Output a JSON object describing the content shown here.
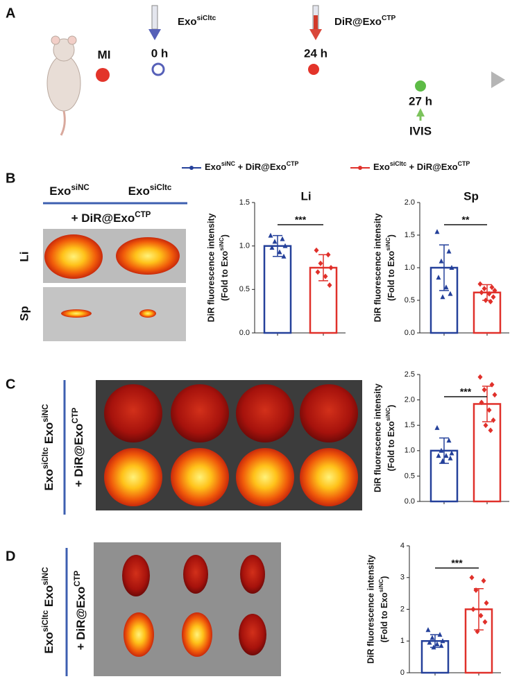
{
  "panel_labels": {
    "a": "A",
    "b": "B",
    "c": "C",
    "d": "D"
  },
  "timeline": {
    "mi": "MI",
    "t0": "0 h",
    "t24": "24 h",
    "t27": "27 h",
    "injection1": [
      "Exo",
      "siCltc"
    ],
    "injection2": [
      "DiR@Exo",
      "CTP"
    ],
    "imaging": "IVIS"
  },
  "legend": {
    "entries": [
      {
        "name": [
          "Exo",
          "siNC",
          " + DiR@Exo",
          "CTP"
        ],
        "color": "#24409a"
      },
      {
        "name": [
          "Exo",
          "siCltc",
          " + DiR@Exo",
          "CTP"
        ],
        "color": "#e0302a"
      }
    ]
  },
  "panel_b_images": {
    "group1": [
      "Exo",
      "siNC"
    ],
    "group2": [
      "Exo",
      "siCltc"
    ],
    "treatment": [
      "+ DiR@Exo",
      "CTP"
    ],
    "rows": [
      "Li",
      "Sp"
    ]
  },
  "panel_c_images": {
    "groups": [
      "Exo",
      "siCltc",
      " Exo",
      "siNC"
    ],
    "treatment": [
      "+ DiR@Exo",
      "CTP"
    ]
  },
  "panel_d_images": {
    "groups": [
      "Exo",
      "siCltc",
      " Exo",
      "siNC"
    ],
    "treatment": [
      "+ DiR@Exo",
      "CTP"
    ]
  },
  "chart_data": [
    {
      "type": "bar",
      "title": "Li",
      "y_label": "DiR fluorescence intensity",
      "y_label_2": [
        "(Fold to Exo",
        "siNC",
        ")"
      ],
      "ylim": [
        0,
        1.5
      ],
      "yticks": [
        {
          "value": 0,
          "label": "0.0"
        },
        {
          "value": 0.5,
          "label": "0.5"
        },
        {
          "value": 1,
          "label": "1.0"
        },
        {
          "value": 1.5,
          "label": "1.5"
        }
      ],
      "significance": "***",
      "series": [
        {
          "color": "#24409a",
          "values": [
            1.0
          ],
          "errors": [
            0.12
          ],
          "points": [
            1.12,
            1.08,
            1.05,
            1.0,
            0.98,
            0.93,
            0.88
          ]
        },
        {
          "color": "#e0302a",
          "values": [
            0.75
          ],
          "errors": [
            0.15
          ],
          "points": [
            0.95,
            0.9,
            0.8,
            0.75,
            0.7,
            0.65,
            0.55
          ]
        }
      ]
    },
    {
      "type": "bar",
      "title": "Sp",
      "y_label": "DiR fluorescence intensity",
      "y_label_2": [
        "(Fold to Exo",
        "siNC",
        ")"
      ],
      "ylim": [
        0,
        2
      ],
      "yticks": [
        {
          "value": 0,
          "label": "0.0"
        },
        {
          "value": 0.5,
          "label": "0.5"
        },
        {
          "value": 1,
          "label": "1.0"
        },
        {
          "value": 1.5,
          "label": "1.5"
        },
        {
          "value": 2,
          "label": "2.0"
        }
      ],
      "significance": "**",
      "series": [
        {
          "color": "#24409a",
          "values": [
            1.0
          ],
          "errors": [
            0.35
          ],
          "points": [
            1.55,
            1.25,
            1.1,
            1.0,
            0.85,
            0.7,
            0.6,
            0.55
          ]
        },
        {
          "color": "#e0302a",
          "values": [
            0.62
          ],
          "errors": [
            0.12
          ],
          "points": [
            0.75,
            0.7,
            0.68,
            0.65,
            0.62,
            0.6,
            0.55,
            0.5,
            0.48
          ]
        }
      ]
    },
    {
      "type": "bar",
      "y_label": "DiR fluorescence intensity",
      "y_label_2": [
        "(Fold to Exo",
        "siNC",
        ")"
      ],
      "ylim": [
        0,
        2.5
      ],
      "yticks": [
        {
          "value": 0,
          "label": "0.0"
        },
        {
          "value": 0.5,
          "label": "0.5"
        },
        {
          "value": 1,
          "label": "1.0"
        },
        {
          "value": 1.5,
          "label": "1.5"
        },
        {
          "value": 2,
          "label": "2.0"
        },
        {
          "value": 2.5,
          "label": "2.5"
        }
      ],
      "significance": "***",
      "series": [
        {
          "color": "#24409a",
          "values": [
            1.0
          ],
          "errors": [
            0.25
          ],
          "points": [
            1.45,
            1.2,
            1.0,
            0.95,
            0.9,
            0.9,
            0.85,
            0.8
          ]
        },
        {
          "color": "#e0302a",
          "values": [
            1.92
          ],
          "errors": [
            0.35
          ],
          "points": [
            2.45,
            2.3,
            2.2,
            2.1,
            1.95,
            1.8,
            1.6,
            1.5,
            1.4
          ]
        }
      ]
    },
    {
      "type": "bar",
      "y_label": "DiR fluorescence intensity",
      "y_label_2": [
        "(Fold to Exo",
        "siNC",
        ")"
      ],
      "ylim": [
        0,
        4
      ],
      "yticks": [
        0,
        1,
        2,
        3,
        4
      ],
      "significance": "***",
      "series": [
        {
          "color": "#24409a",
          "values": [
            1.0
          ],
          "errors": [
            0.2
          ],
          "points": [
            1.35,
            1.2,
            1.1,
            1.0,
            0.95,
            0.9,
            0.85,
            0.8
          ]
        },
        {
          "color": "#e0302a",
          "values": [
            2.0
          ],
          "errors": [
            0.65
          ],
          "points": [
            3.0,
            2.9,
            2.6,
            2.2,
            2.0,
            1.8,
            1.6,
            1.3
          ]
        }
      ]
    }
  ]
}
